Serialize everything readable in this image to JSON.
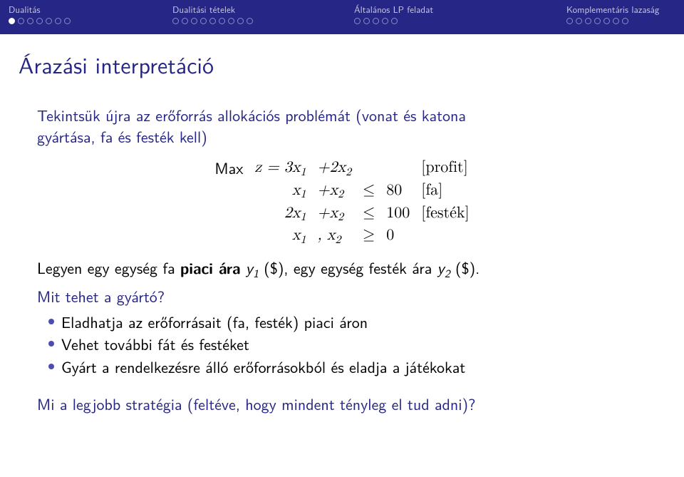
{
  "header": {
    "bg": "#262686",
    "sections": [
      {
        "title": "Dualitás",
        "dot_count": 7,
        "filled_index": 0
      },
      {
        "title": "Dualitási tételek",
        "dot_count": 9,
        "filled_index": -1
      },
      {
        "title": "Általános LP feladat",
        "dot_count": 5,
        "filled_index": -1
      },
      {
        "title": "Komplementáris lazaság",
        "dot_count": 7,
        "filled_index": -1
      }
    ]
  },
  "slide_title": "Árazási interpretáció",
  "intro_1": "Tekintsük újra az erőforrás allokációs problémát (vonat és katona",
  "intro_2": "gyártása, fa és festék kell)",
  "lp": {
    "rows": [
      [
        "Max",
        "z = 3x",
        "1",
        "+2x",
        "2",
        "",
        "",
        "[profit]"
      ],
      [
        "",
        "x",
        "1",
        "+x",
        "2",
        "≤",
        "80",
        "[fa]"
      ],
      [
        "",
        "2x",
        "1",
        "+x",
        "2",
        "≤",
        "100",
        "[festék]"
      ],
      [
        "",
        "x",
        "1",
        ", x",
        "2",
        "≥",
        "0",
        ""
      ]
    ]
  },
  "legyen_pre": "Legyen egy egység fa ",
  "piaci_ara": "piaci ára",
  "y1": " y",
  "legyen_mid": " ($), egy egység festék ára ",
  "y2": "y",
  "legyen_end": " ($).",
  "question": "Mit tehet a gyártó?",
  "bullets": [
    "Eladhatja az erőforrásait (fa, festék) piaci áron",
    "Vehet további fát és festéket",
    "Gyárt a rendelkezésre álló erőforrásokból és eladja a játékokat"
  ],
  "closing": "Mi a legjobb stratégia (feltéve, hogy mindent tényleg el tud adni)?"
}
